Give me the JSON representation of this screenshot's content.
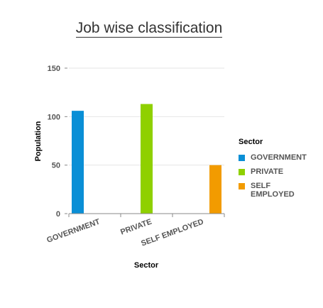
{
  "chart_data": {
    "type": "bar",
    "title": "Job wise classification",
    "xlabel": "Sector",
    "ylabel": "Population",
    "categories": [
      "GOVERNMENT",
      "PRIVATE",
      "SELF EMPLOYED"
    ],
    "values": [
      106,
      113,
      50
    ],
    "ylim": [
      0,
      150
    ],
    "yticks": [
      0,
      50,
      100,
      150
    ],
    "grid": true,
    "legend": {
      "title": "Sector",
      "position": "right",
      "entries": [
        "GOVERNMENT",
        "PRIVATE",
        "SELF EMPLOYED"
      ]
    },
    "colors": [
      "#0a8fd6",
      "#8fd000",
      "#f29b00"
    ]
  }
}
